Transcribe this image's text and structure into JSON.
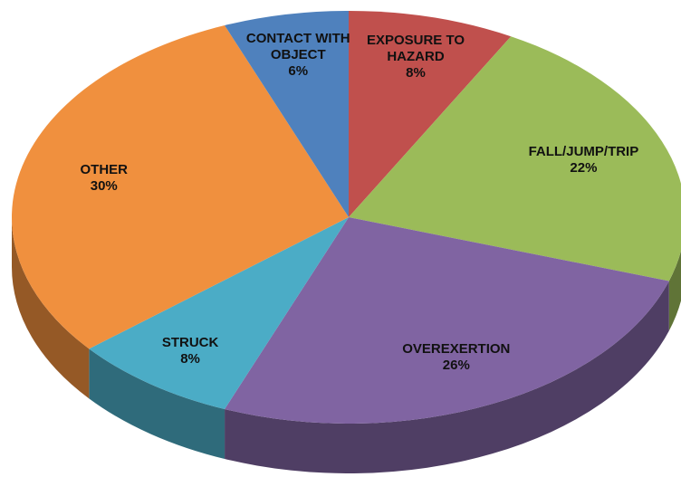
{
  "chart_data": {
    "type": "pie",
    "categories": [
      "EXPOSURE TO HAZARD",
      "FALL/JUMP/TRIP",
      "OVEREXERTION",
      "STRUCK",
      "OTHER",
      "CONTACT WITH OBJECT"
    ],
    "values": [
      8,
      22,
      26,
      8,
      30,
      6
    ],
    "value_labels": [
      "8%",
      "22%",
      "26%",
      "8%",
      "30%",
      "6%"
    ],
    "colors": [
      "#c0504d",
      "#9bbb59",
      "#8064a2",
      "#4bacc6",
      "#f0903e",
      "#4f81bd"
    ]
  }
}
